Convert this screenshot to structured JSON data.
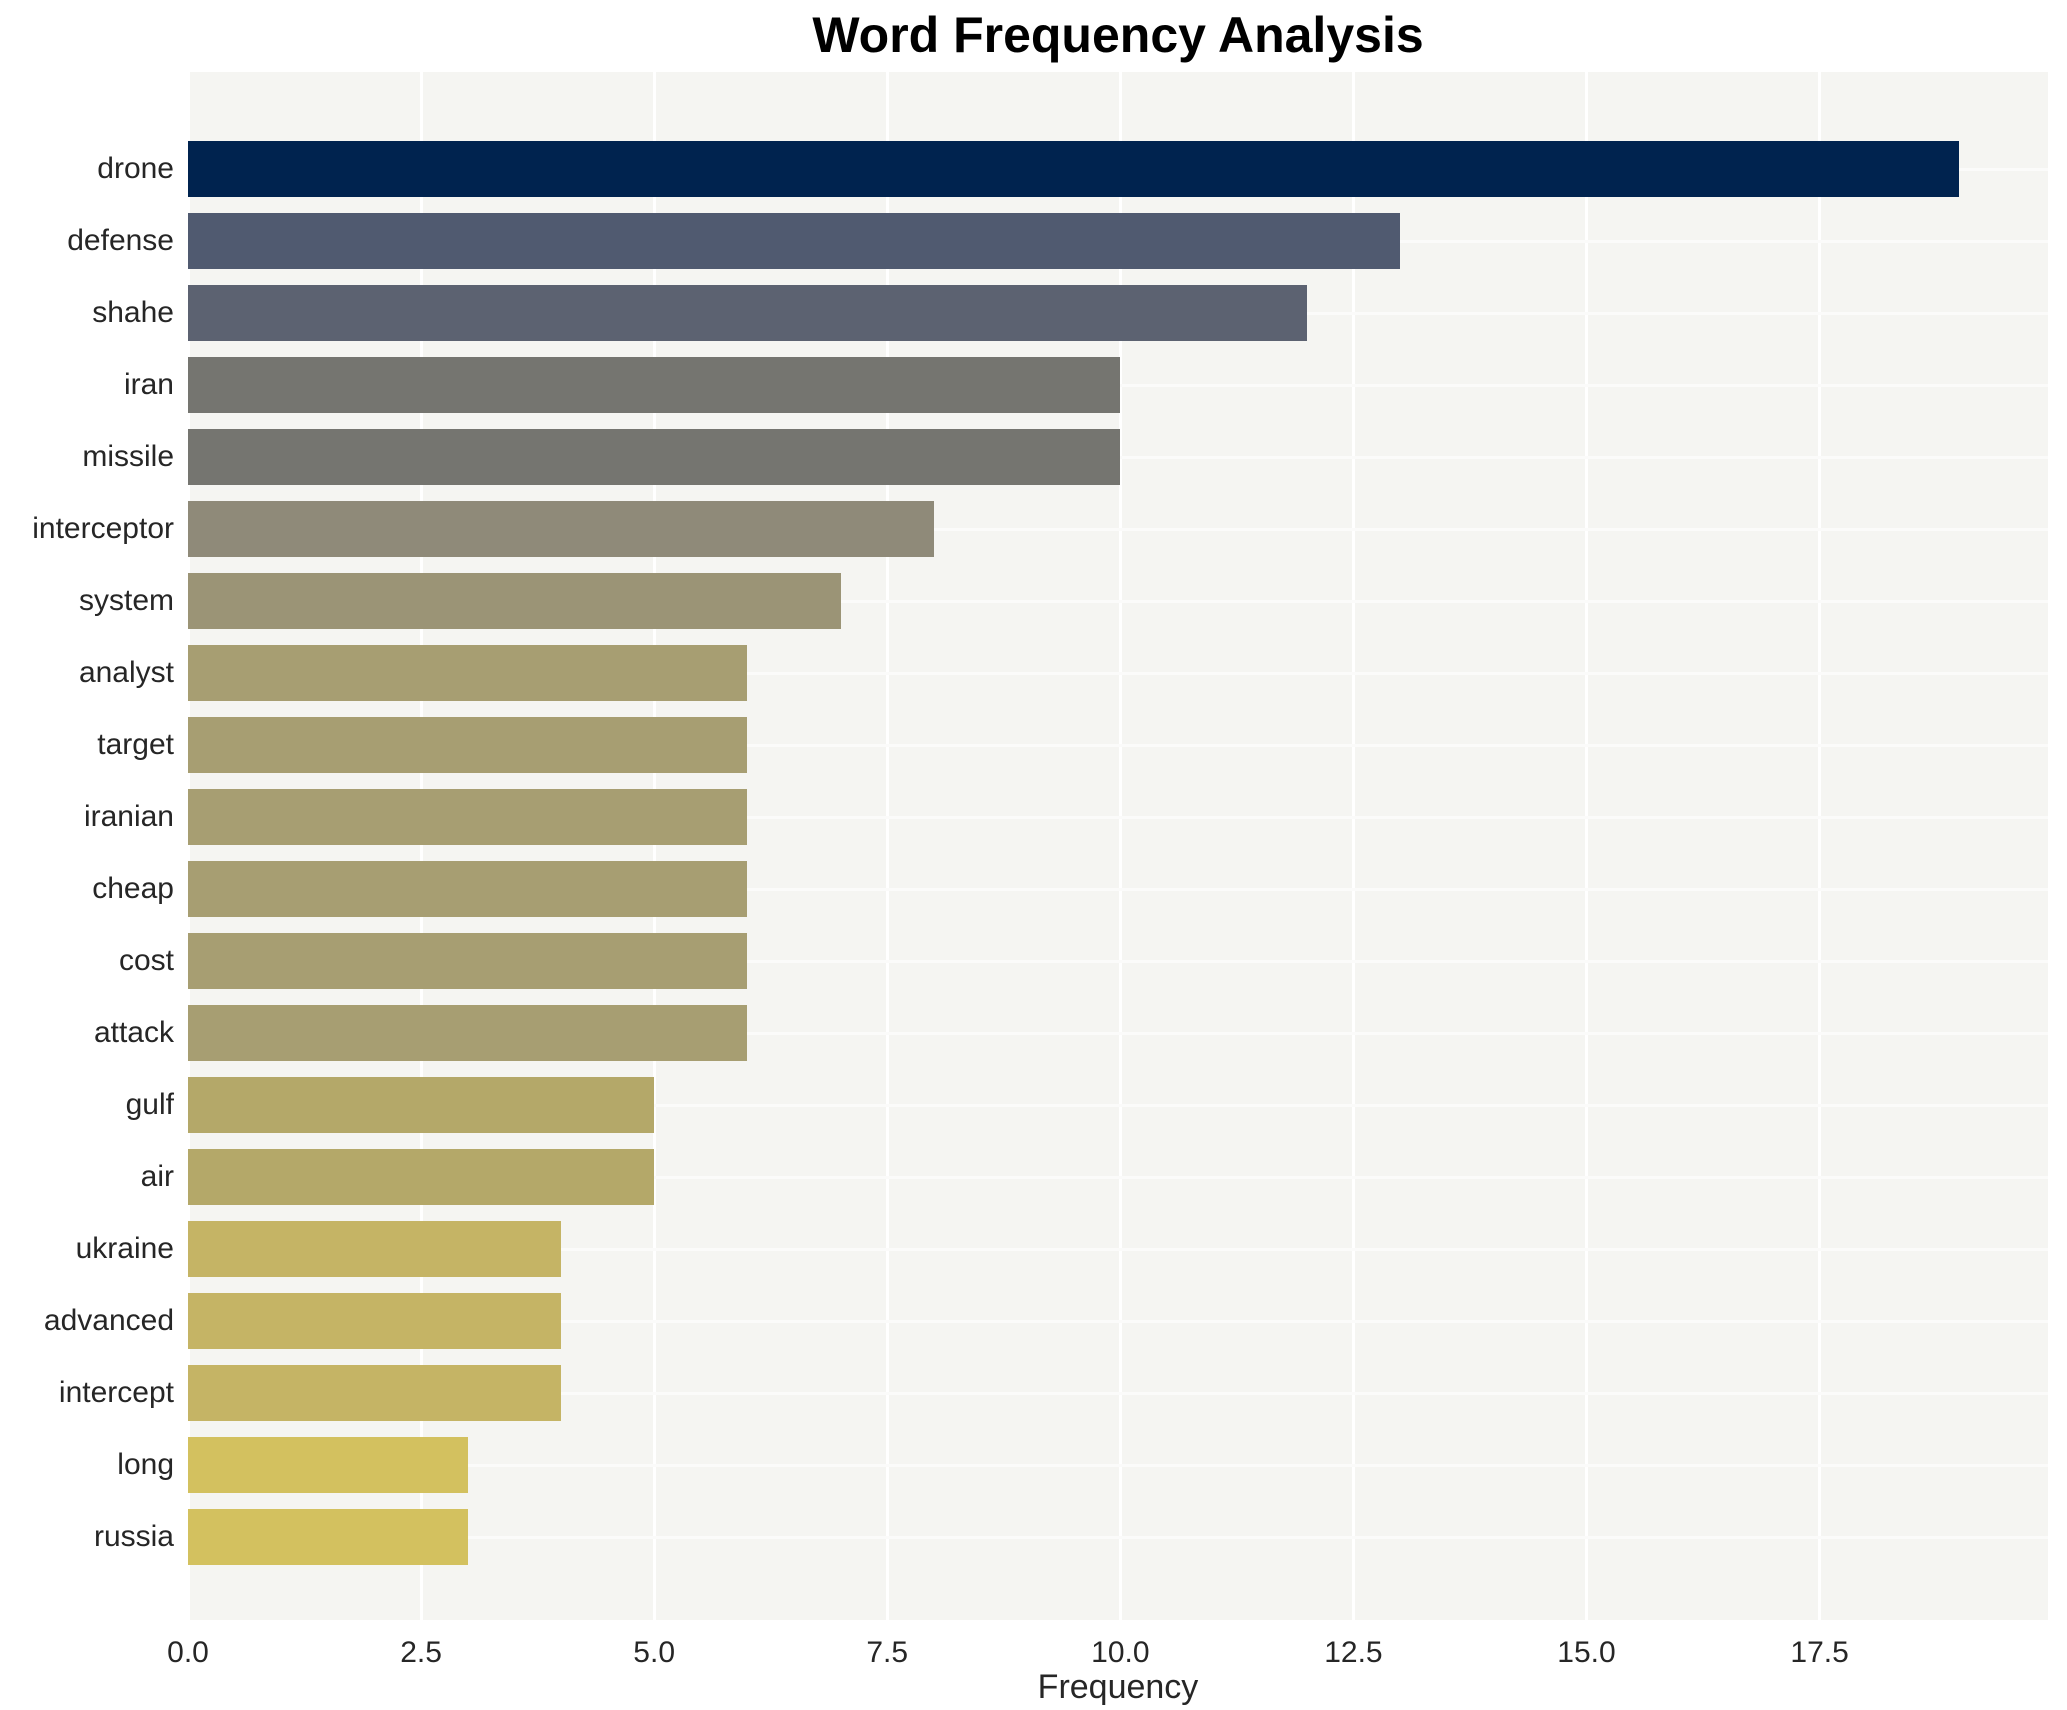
{
  "title": "Word Frequency Analysis",
  "chart_data": {
    "type": "bar",
    "orientation": "horizontal",
    "title": "Word Frequency Analysis",
    "xlabel": "Frequency",
    "ylabel": "",
    "categories": [
      "drone",
      "defense",
      "shahe",
      "iran",
      "missile",
      "interceptor",
      "system",
      "analyst",
      "target",
      "iranian",
      "cheap",
      "cost",
      "attack",
      "gulf",
      "air",
      "ukraine",
      "advanced",
      "intercept",
      "long",
      "russia"
    ],
    "values": [
      19,
      13,
      12,
      10,
      10,
      8,
      7,
      6,
      6,
      6,
      6,
      6,
      6,
      5,
      5,
      4,
      4,
      4,
      3,
      3
    ],
    "bar_colors": [
      "#00234f",
      "#505a70",
      "#5c6271",
      "#757570",
      "#757570",
      "#8f8a79",
      "#9b9476",
      "#a79e72",
      "#a79e72",
      "#a79e72",
      "#a79e72",
      "#a79e72",
      "#a79e72",
      "#b4a869",
      "#b4a869",
      "#c5b465",
      "#c5b465",
      "#c5b465",
      "#d3c15f",
      "#d3c15f"
    ],
    "xlim": [
      0,
      19.95
    ],
    "xticks": [
      0.0,
      2.5,
      5.0,
      7.5,
      10.0,
      12.5,
      15.0,
      17.5
    ],
    "xtick_labels": [
      "0.0",
      "2.5",
      "5.0",
      "7.5",
      "10.0",
      "12.5",
      "15.0",
      "17.5"
    ],
    "grid": true,
    "legend": false,
    "colors": {
      "plot_background": "#f5f5f2",
      "grid_line": "#ffffff",
      "figure_background": "#ffffff",
      "text": "#262626",
      "title_text": "#000000"
    }
  }
}
